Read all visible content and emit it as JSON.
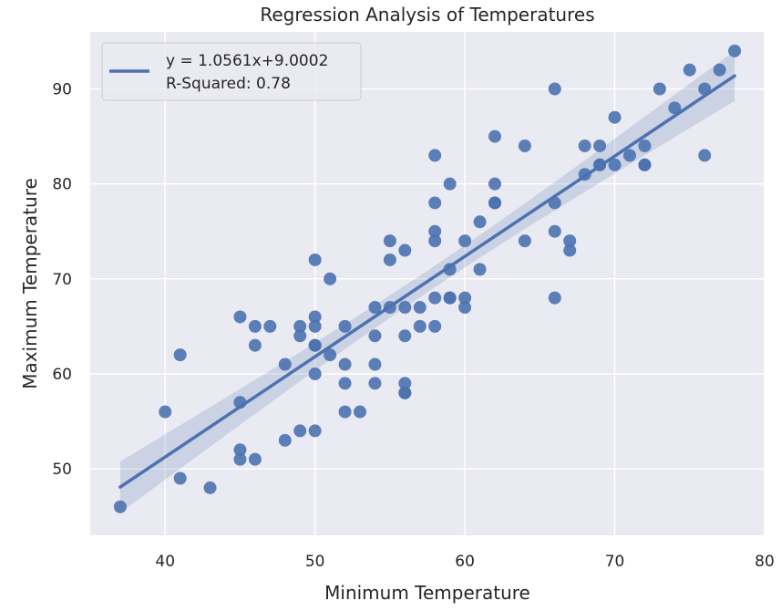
{
  "chart_data": {
    "type": "scatter",
    "title": "Regression Analysis of Temperatures",
    "xlabel": "Minimum Temperature",
    "ylabel": "Maximum Temperature",
    "xlim": [
      35,
      80
    ],
    "ylim": [
      43,
      96
    ],
    "xticks": [
      40,
      50,
      60,
      70,
      80
    ],
    "yticks": [
      50,
      60,
      70,
      80,
      90
    ],
    "grid": true,
    "legend_position": "top-left",
    "legend": {
      "line1": "y = 1.0561x+9.0002",
      "line2": "R-Squared: 0.78"
    },
    "colors": {
      "point": "#4c72b0",
      "line": "#4c72b0",
      "band": "#4c72b0",
      "plot_bg": "#eaeaf2",
      "grid": "#ffffff"
    },
    "regression": {
      "slope": 1.0561,
      "intercept": 9.0002,
      "x_range": [
        37,
        78
      ]
    },
    "points": [
      [
        37,
        46
      ],
      [
        40,
        56
      ],
      [
        41,
        62
      ],
      [
        41,
        49
      ],
      [
        43,
        48
      ],
      [
        45,
        66
      ],
      [
        45,
        57
      ],
      [
        45,
        52
      ],
      [
        45,
        51
      ],
      [
        46,
        65
      ],
      [
        46,
        63
      ],
      [
        46,
        51
      ],
      [
        47,
        65
      ],
      [
        48,
        61
      ],
      [
        48,
        53
      ],
      [
        49,
        65
      ],
      [
        49,
        64
      ],
      [
        49,
        54
      ],
      [
        50,
        72
      ],
      [
        50,
        66
      ],
      [
        50,
        65
      ],
      [
        50,
        63
      ],
      [
        50,
        63
      ],
      [
        50,
        60
      ],
      [
        50,
        54
      ],
      [
        51,
        70
      ],
      [
        51,
        62
      ],
      [
        52,
        65
      ],
      [
        52,
        61
      ],
      [
        52,
        59
      ],
      [
        52,
        56
      ],
      [
        53,
        56
      ],
      [
        54,
        67
      ],
      [
        54,
        64
      ],
      [
        54,
        61
      ],
      [
        54,
        59
      ],
      [
        55,
        74
      ],
      [
        55,
        72
      ],
      [
        55,
        67
      ],
      [
        56,
        73
      ],
      [
        56,
        67
      ],
      [
        56,
        64
      ],
      [
        56,
        59
      ],
      [
        56,
        58
      ],
      [
        56,
        58
      ],
      [
        57,
        67
      ],
      [
        57,
        65
      ],
      [
        58,
        83
      ],
      [
        58,
        78
      ],
      [
        58,
        75
      ],
      [
        58,
        74
      ],
      [
        58,
        68
      ],
      [
        58,
        65
      ],
      [
        59,
        80
      ],
      [
        59,
        71
      ],
      [
        59,
        68
      ],
      [
        59,
        68
      ],
      [
        60,
        74
      ],
      [
        60,
        68
      ],
      [
        60,
        67
      ],
      [
        61,
        76
      ],
      [
        61,
        71
      ],
      [
        62,
        85
      ],
      [
        62,
        80
      ],
      [
        62,
        78
      ],
      [
        62,
        78
      ],
      [
        64,
        84
      ],
      [
        64,
        74
      ],
      [
        66,
        90
      ],
      [
        66,
        78
      ],
      [
        66,
        75
      ],
      [
        66,
        68
      ],
      [
        67,
        74
      ],
      [
        67,
        73
      ],
      [
        68,
        84
      ],
      [
        68,
        81
      ],
      [
        69,
        84
      ],
      [
        69,
        82
      ],
      [
        69,
        82
      ],
      [
        70,
        87
      ],
      [
        70,
        82
      ],
      [
        71,
        83
      ],
      [
        72,
        84
      ],
      [
        72,
        82
      ],
      [
        72,
        82
      ],
      [
        73,
        90
      ],
      [
        74,
        88
      ],
      [
        75,
        92
      ],
      [
        76,
        90
      ],
      [
        76,
        83
      ],
      [
        77,
        92
      ],
      [
        78,
        94
      ]
    ]
  }
}
